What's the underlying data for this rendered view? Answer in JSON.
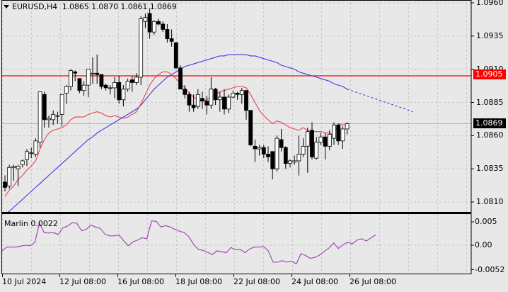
{
  "header": {
    "symbol": "EURUSD,H4",
    "open": "1.0865",
    "high": "1.0870",
    "low": "1.0861",
    "close": "1.0869"
  },
  "indicator": {
    "label": "Marlin 0.0022",
    "axis_labels": [
      "0.005",
      "0.00",
      "-0.0052"
    ]
  },
  "price_axis": {
    "labels": [
      "1.0960",
      "1.0935",
      "1.0910",
      "1.0885",
      "1.0860",
      "1.0835",
      "1.0810"
    ],
    "level_label": "1.0905",
    "current_label": "1.0869"
  },
  "time_axis": {
    "labels": [
      "10 Jul 2024",
      "12 Jul 08:00",
      "16 Jul 08:00",
      "18 Jul 08:00",
      "22 Jul 08:00",
      "24 Jul 08:00",
      "26 Jul 08:00"
    ]
  },
  "colors": {
    "background": "#e8e8e8",
    "grid": "#c8c8c8",
    "axis": "#000000",
    "bull_body": "#ffffff",
    "bear_body": "#000000",
    "level_line": "#ff0000",
    "fast_ma": "#e8404f",
    "slow_ma": "#3a3ae6",
    "oscillator": "#a03cb4",
    "current_price_bg": "#000000"
  },
  "chart_data": [
    {
      "type": "candlestick",
      "title": "EURUSD,H4",
      "ylabel": "Price",
      "ylim": [
        1.0795,
        1.0962
      ],
      "grid": true,
      "y_ticks": [
        1.096,
        1.0935,
        1.091,
        1.0885,
        1.086,
        1.0835,
        1.081
      ],
      "x_tick_labels": [
        "10 Jul 2024",
        "12 Jul 08:00",
        "16 Jul 08:00",
        "18 Jul 08:00",
        "22 Jul 08:00",
        "24 Jul 08:00",
        "26 Jul 08:00"
      ],
      "horizontal_level": 1.0905,
      "last_price": 1.0869,
      "ohlc": [
        [
          1.0825,
          1.083,
          1.0818,
          1.0821
        ],
        [
          1.0822,
          1.0838,
          1.082,
          1.0836
        ],
        [
          1.0836,
          1.0838,
          1.0826,
          1.0837
        ],
        [
          1.0835,
          1.0838,
          1.0822,
          1.0837
        ],
        [
          1.0838,
          1.0842,
          1.0836,
          1.0841
        ],
        [
          1.0842,
          1.085,
          1.0837,
          1.0848
        ],
        [
          1.0847,
          1.0851,
          1.0843,
          1.0847
        ],
        [
          1.0846,
          1.0858,
          1.0844,
          1.0856
        ],
        [
          1.0855,
          1.0893,
          1.0851,
          1.0893
        ],
        [
          1.0891,
          1.0893,
          1.0866,
          1.0872
        ],
        [
          1.0872,
          1.0875,
          1.0866,
          1.0873
        ],
        [
          1.0872,
          1.0879,
          1.0868,
          1.0876
        ],
        [
          1.0875,
          1.0878,
          1.0869,
          1.0875
        ],
        [
          1.0876,
          1.0891,
          1.0867,
          1.0891
        ],
        [
          1.0892,
          1.0898,
          1.0884,
          1.0897
        ],
        [
          1.0897,
          1.091,
          1.0894,
          1.0909
        ],
        [
          1.0908,
          1.0909,
          1.0901,
          1.0907
        ],
        [
          1.0903,
          1.0903,
          1.0892,
          1.0894
        ],
        [
          1.0894,
          1.0901,
          1.089,
          1.0898
        ],
        [
          1.0898,
          1.091,
          1.0889,
          1.091
        ],
        [
          1.0907,
          1.0919,
          1.0899,
          1.0907
        ],
        [
          1.0907,
          1.0921,
          1.0899,
          1.0906
        ],
        [
          1.0906,
          1.0906,
          1.0895,
          1.0897
        ],
        [
          1.0898,
          1.0899,
          1.0894,
          1.0896
        ],
        [
          1.0896,
          1.0898,
          1.0891,
          1.0896
        ],
        [
          1.0896,
          1.0904,
          1.0888,
          1.09
        ],
        [
          1.09,
          1.0905,
          1.0884,
          1.0887
        ],
        [
          1.0887,
          1.0898,
          1.0882,
          1.0895
        ],
        [
          1.0895,
          1.0903,
          1.0893,
          1.0901
        ],
        [
          1.0902,
          1.0905,
          1.0893,
          1.09
        ],
        [
          1.09,
          1.0907,
          1.0898,
          1.0904
        ],
        [
          1.0904,
          1.095,
          1.0898,
          1.0948
        ],
        [
          1.0946,
          1.0952,
          1.0941,
          1.0949
        ],
        [
          1.0952,
          1.0956,
          1.0933,
          1.0938
        ],
        [
          1.0938,
          1.0947,
          1.0936,
          1.0946
        ],
        [
          1.0946,
          1.0948,
          1.0943,
          1.0944
        ],
        [
          1.0944,
          1.0946,
          1.0938,
          1.094
        ],
        [
          1.094,
          1.0944,
          1.093,
          1.0933
        ],
        [
          1.0933,
          1.094,
          1.0927,
          1.0931
        ],
        [
          1.093,
          1.0924,
          1.091,
          1.0911
        ],
        [
          1.0911,
          1.0913,
          1.0895,
          1.0895
        ],
        [
          1.0895,
          1.0898,
          1.0888,
          1.0891
        ],
        [
          1.0891,
          1.0893,
          1.0878,
          1.0883
        ],
        [
          1.0883,
          1.0891,
          1.0878,
          1.0881
        ],
        [
          1.0882,
          1.0895,
          1.088,
          1.0891
        ],
        [
          1.0888,
          1.0893,
          1.088,
          1.0886
        ],
        [
          1.0886,
          1.089,
          1.0876,
          1.0883
        ],
        [
          1.0883,
          1.0904,
          1.088,
          1.0895
        ],
        [
          1.0895,
          1.0896,
          1.0883,
          1.0887
        ],
        [
          1.0887,
          1.0893,
          1.0878,
          1.0889
        ],
        [
          1.0889,
          1.0895,
          1.0876,
          1.088
        ],
        [
          1.088,
          1.0891,
          1.0877,
          1.0889
        ],
        [
          1.0889,
          1.0894,
          1.0888,
          1.0892
        ],
        [
          1.0892,
          1.0893,
          1.0887,
          1.0891
        ],
        [
          1.0891,
          1.0896,
          1.0884,
          1.0894
        ],
        [
          1.0894,
          1.0894,
          1.0872,
          1.0879
        ],
        [
          1.0879,
          1.0877,
          1.0852,
          1.0853
        ],
        [
          1.0852,
          1.0857,
          1.084,
          1.085
        ],
        [
          1.085,
          1.0853,
          1.0845,
          1.0851
        ],
        [
          1.0851,
          1.0853,
          1.0843,
          1.0846
        ],
        [
          1.0846,
          1.0852,
          1.084,
          1.0844
        ],
        [
          1.0848,
          1.0848,
          1.0827,
          1.0835
        ],
        [
          1.0835,
          1.086,
          1.0833,
          1.0858
        ],
        [
          1.0857,
          1.0865,
          1.0848,
          1.0851
        ],
        [
          1.0851,
          1.0852,
          1.0835,
          1.0839
        ],
        [
          1.0839,
          1.0842,
          1.0836,
          1.0841
        ],
        [
          1.084,
          1.0845,
          1.0838,
          1.0841
        ],
        [
          1.0841,
          1.086,
          1.083,
          1.0846
        ],
        [
          1.0846,
          1.0858,
          1.0844,
          1.0852
        ],
        [
          1.0852,
          1.0866,
          1.0832,
          1.0863
        ],
        [
          1.0864,
          1.087,
          1.0842,
          1.0844
        ],
        [
          1.0843,
          1.0859,
          1.0842,
          1.0855
        ],
        [
          1.0855,
          1.0862,
          1.0853,
          1.0859
        ],
        [
          1.0859,
          1.0862,
          1.0842,
          1.0852
        ],
        [
          1.0852,
          1.0864,
          1.0849,
          1.0861
        ],
        [
          1.0858,
          1.087,
          1.0853,
          1.0868
        ],
        [
          1.0868,
          1.0869,
          1.0853,
          1.0856
        ],
        [
          1.0856,
          1.0867,
          1.085,
          1.0865
        ],
        [
          1.0865,
          1.087,
          1.0861,
          1.0869
        ]
      ],
      "series": [
        {
          "name": "Fast MA (red)",
          "values": [
            1.0814,
            1.0819,
            1.0822,
            1.0827,
            1.083,
            1.0834,
            1.0837,
            1.0841,
            1.085,
            1.0857,
            1.0862,
            1.0864,
            1.0865,
            1.0866,
            1.0868,
            1.0872,
            1.0874,
            1.0874,
            1.0874,
            1.0876,
            1.0877,
            1.0878,
            1.0877,
            1.0875,
            1.0874,
            1.0875,
            1.0874,
            1.0873,
            1.0874,
            1.0876,
            1.0878,
            1.0884,
            1.0891,
            1.0898,
            1.0903,
            1.0906,
            1.0908,
            1.0908,
            1.0906,
            1.0903,
            1.0899,
            1.0896,
            1.0892,
            1.0889,
            1.0887,
            1.0886,
            1.0887,
            1.0889,
            1.0891,
            1.0893,
            1.0894,
            1.0895,
            1.0896,
            1.0897,
            1.0897,
            1.0896,
            1.0891,
            1.0885,
            1.0879,
            1.0875,
            1.0872,
            1.0869,
            1.0871,
            1.087,
            1.0868,
            1.0866,
            1.0865,
            1.0864,
            1.0866,
            1.0864,
            1.0863,
            1.0863,
            1.0863,
            1.0862,
            1.0862,
            1.0861,
            1.0869,
            1.0868,
            1.0868
          ]
        },
        {
          "name": "Slow MA (blue)",
          "values": [
            1.0801,
            1.0803,
            1.0806,
            1.0809,
            1.0812,
            1.0815,
            1.0818,
            1.0821,
            1.0824,
            1.0827,
            1.083,
            1.0833,
            1.0836,
            1.0839,
            1.0842,
            1.0845,
            1.0848,
            1.0851,
            1.0854,
            1.0857,
            1.0859,
            1.0862,
            1.0864,
            1.0866,
            1.0868,
            1.087,
            1.0872,
            1.0874,
            1.0876,
            1.0878,
            1.088,
            1.0883,
            1.0887,
            1.0891,
            1.0895,
            1.0898,
            1.0901,
            1.0904,
            1.0906,
            1.0908,
            1.091,
            1.0912,
            1.0913,
            1.0914,
            1.0915,
            1.0916,
            1.0917,
            1.0918,
            1.0919,
            1.092,
            1.092,
            1.0921,
            1.0921,
            1.0921,
            1.0921,
            1.0921,
            1.092,
            1.092,
            1.0919,
            1.0918,
            1.0917,
            1.0916,
            1.0915,
            1.0913,
            1.0912,
            1.0911,
            1.091,
            1.0908,
            1.0907,
            1.0906,
            1.0905,
            1.0904,
            1.0903,
            1.0902,
            1.0901,
            1.0899,
            1.0898,
            1.0897,
            1.0895
          ]
        },
        {
          "name": "Slow MA projection (blue dotted)",
          "x_end_offset_bars": 15,
          "start": 1.0895,
          "end": 1.0878
        }
      ]
    },
    {
      "type": "line",
      "title": "Marlin 0.0022",
      "ylim": [
        -0.0058,
        0.0062
      ],
      "y_ticks": [
        0.005,
        0.0,
        -0.0052
      ],
      "grid": true,
      "series": [
        {
          "name": "Marlin",
          "values": [
            -0.0012,
            -0.0004,
            -0.0004,
            -0.0004,
            -0.0002,
            0.0,
            -0.0001,
            0.0006,
            0.0047,
            0.0027,
            0.0026,
            0.0027,
            0.0023,
            0.0037,
            0.0041,
            0.0048,
            0.0047,
            0.0031,
            0.0034,
            0.0043,
            0.0039,
            0.0036,
            0.0024,
            0.002,
            0.002,
            0.0022,
            0.001,
            -0.0001,
            0.0007,
            0.0011,
            0.0016,
            0.0014,
            0.0052,
            0.0051,
            0.0039,
            0.0042,
            0.0039,
            0.0034,
            0.003,
            0.0027,
            0.0018,
            0.0002,
            -0.0009,
            -0.0011,
            -0.0015,
            -0.002,
            -0.0012,
            -0.0014,
            -0.0016,
            -0.0005,
            -0.001,
            -0.0009,
            -0.0016,
            -0.0008,
            -0.0004,
            -0.0004,
            -0.0003,
            -0.0012,
            -0.0036,
            -0.0036,
            -0.0033,
            -0.0036,
            -0.0034,
            -0.004,
            -0.0018,
            -0.0022,
            -0.0028,
            -0.0026,
            -0.0021,
            -0.0013,
            -0.0006,
            0.0005,
            -0.0007,
            0.0001,
            0.0006,
            0.0003,
            0.0011,
            0.0014,
            0.0009,
            0.0016,
            0.0022
          ]
        }
      ]
    }
  ]
}
